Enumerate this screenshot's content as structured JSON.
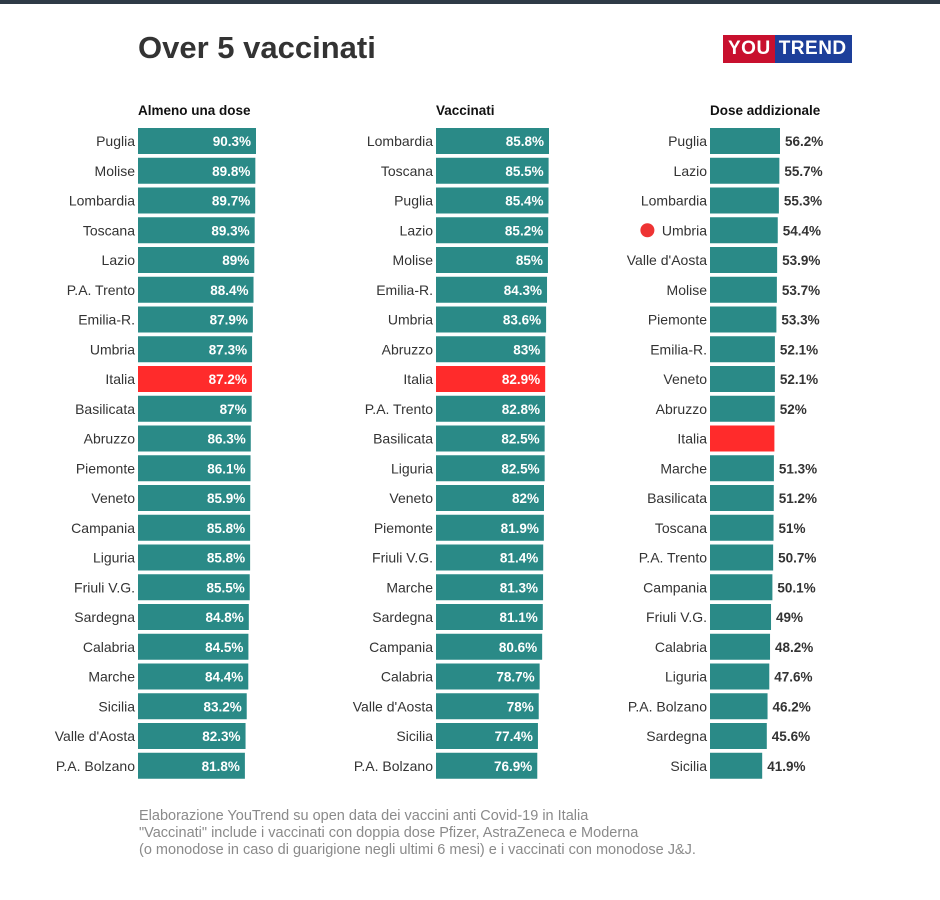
{
  "title": "Over 5 vaccinati",
  "logo": {
    "part1": "YOU",
    "part2": "TREND"
  },
  "colors": {
    "bar": "#2a8a87",
    "highlight": "#ff2b2b",
    "marker": "#ee3333",
    "label_in": "#ffffff",
    "label_out": "#333333"
  },
  "footnotes": [
    "Elaborazione YouTrend su open data dei vaccini anti Covid-19 in Italia",
    "\"Vaccinati\" include i vaccinati con doppia dose Pfizer, AstraZeneca e Moderna",
    "(o monodose in caso di guarigione negli ultimi 6 mesi) e i vaccinati con monodose J&J."
  ],
  "chart_data": [
    {
      "type": "bar",
      "orientation": "horizontal",
      "title": "Almeno una dose",
      "value_label_position": "inside",
      "highlight": [
        "Italia"
      ],
      "categories": [
        "Puglia",
        "Molise",
        "Lombardia",
        "Toscana",
        "Lazio",
        "P.A. Trento",
        "Emilia-R.",
        "Umbria",
        "Italia",
        "Basilicata",
        "Abruzzo",
        "Piemonte",
        "Veneto",
        "Campania",
        "Liguria",
        "Friuli V.G.",
        "Sardegna",
        "Calabria",
        "Marche",
        "Sicilia",
        "Valle d'Aosta",
        "P.A. Bolzano"
      ],
      "values": [
        90.3,
        89.8,
        89.7,
        89.3,
        89,
        88.4,
        87.9,
        87.3,
        87.2,
        87,
        86.3,
        86.1,
        85.9,
        85.8,
        85.8,
        85.5,
        84.8,
        84.5,
        84.4,
        83.2,
        82.3,
        81.8
      ],
      "value_labels": [
        "90.3%",
        "89.8%",
        "89.7%",
        "89.3%",
        "89%",
        "88.4%",
        "87.9%",
        "87.3%",
        "87.2%",
        "87%",
        "86.3%",
        "86.1%",
        "85.9%",
        "85.8%",
        "85.8%",
        "85.5%",
        "84.8%",
        "84.5%",
        "84.4%",
        "83.2%",
        "82.3%",
        "81.8%"
      ],
      "xlim": [
        0,
        90.3
      ]
    },
    {
      "type": "bar",
      "orientation": "horizontal",
      "title": "Vaccinati",
      "value_label_position": "inside",
      "highlight": [
        "Italia"
      ],
      "categories": [
        "Lombardia",
        "Toscana",
        "Puglia",
        "Lazio",
        "Molise",
        "Emilia-R.",
        "Umbria",
        "Abruzzo",
        "Italia",
        "P.A. Trento",
        "Basilicata",
        "Liguria",
        "Veneto",
        "Piemonte",
        "Friuli V.G.",
        "Marche",
        "Sardegna",
        "Campania",
        "Calabria",
        "Valle d'Aosta",
        "Sicilia",
        "P.A. Bolzano"
      ],
      "values": [
        85.8,
        85.5,
        85.4,
        85.2,
        85,
        84.3,
        83.6,
        83,
        82.9,
        82.8,
        82.5,
        82.5,
        82,
        81.9,
        81.4,
        81.3,
        81.1,
        80.6,
        78.7,
        78,
        77.4,
        76.9
      ],
      "value_labels": [
        "85.8%",
        "85.5%",
        "85.4%",
        "85.2%",
        "85%",
        "84.3%",
        "83.6%",
        "83%",
        "82.9%",
        "82.8%",
        "82.5%",
        "82.5%",
        "82%",
        "81.9%",
        "81.4%",
        "81.3%",
        "81.1%",
        "80.6%",
        "78.7%",
        "78%",
        "77.4%",
        "76.9%"
      ],
      "xlim": [
        0,
        85.8
      ]
    },
    {
      "type": "bar",
      "orientation": "horizontal",
      "title": "Dose addizionale",
      "value_label_position": "outside",
      "highlight": [
        "Italia"
      ],
      "marked": [
        "Umbria"
      ],
      "categories": [
        "Puglia",
        "Lazio",
        "Lombardia",
        "Umbria",
        "Valle d'Aosta",
        "Molise",
        "Piemonte",
        "Emilia-R.",
        "Veneto",
        "Abruzzo",
        "Italia",
        "Marche",
        "Basilicata",
        "Toscana",
        "P.A. Trento",
        "Campania",
        "Friuli V.G.",
        "Calabria",
        "Liguria",
        "P.A. Bolzano",
        "Sardegna",
        "Sicilia"
      ],
      "values": [
        56.2,
        55.7,
        55.3,
        54.4,
        53.9,
        53.7,
        53.3,
        52.1,
        52.1,
        52,
        51.7,
        51.3,
        51.2,
        51,
        50.7,
        50.1,
        49,
        48.2,
        47.6,
        46.2,
        45.6,
        41.9
      ],
      "value_labels": [
        "56.2%",
        "55.7%",
        "55.3%",
        "54.4%",
        "53.9%",
        "53.7%",
        "53.3%",
        "52.1%",
        "52.1%",
        "52%",
        "",
        "51.3%",
        "51.2%",
        "51%",
        "50.7%",
        "50.1%",
        "49%",
        "48.2%",
        "47.6%",
        "46.2%",
        "45.6%",
        "41.9%"
      ],
      "xlim": [
        0,
        56.2
      ]
    }
  ]
}
